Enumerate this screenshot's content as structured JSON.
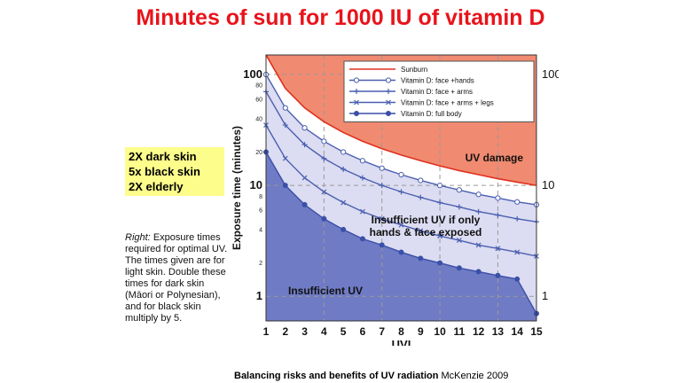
{
  "slide": {
    "title": "Minutes of sun for 1000 IU of vitamin D",
    "notes": [
      "2X dark skin",
      "5x black skin",
      "2X elderly"
    ],
    "caption_italic": "Right:",
    "caption_text": "Exposure times required for optimal UV. The times given are for light skin. Double these times for dark skin (Māori or Polynesian), and for black skin multiply by 5.",
    "footer_bold": "Balancing risks and benefits of UV radiation",
    "footer_source": "McKenzie 2009"
  },
  "chart_data": {
    "type": "line",
    "xlabel": "UVI",
    "ylabel": "Exposure time (minutes)",
    "x": [
      1,
      2,
      3,
      4,
      5,
      6,
      7,
      8,
      9,
      10,
      11,
      12,
      13,
      14,
      15
    ],
    "xlim": [
      1,
      15
    ],
    "ylim": [
      0.6,
      150
    ],
    "y_scale": "log",
    "y_major_ticks": [
      1,
      10,
      100
    ],
    "y_minor_ticks": [
      2,
      4,
      6,
      8,
      20,
      40,
      60,
      80
    ],
    "grid": "dashed",
    "legend_position": "top-right",
    "regions": [
      {
        "label": "UV damage",
        "color": "#f08a70"
      },
      {
        "label": "Insufficient UV if only hands & face exposed",
        "color": "#dcdcf2"
      },
      {
        "label": "Insufficient UV",
        "color": "#6f7bc4"
      }
    ],
    "series": [
      {
        "name": "Sunburn",
        "color": "#e0301e",
        "marker": "none",
        "values": [
          150,
          75,
          50,
          37.5,
          30,
          25,
          21.4,
          18.8,
          16.7,
          15,
          13.6,
          12.5,
          11.5,
          10.7,
          10
        ]
      },
      {
        "name": "Vitamin D: face +hands",
        "color": "#4a5fb0",
        "marker": "circle-open",
        "values": [
          100,
          50,
          33,
          25,
          20,
          16.7,
          14.3,
          12.5,
          11.1,
          10,
          9.1,
          8.3,
          7.7,
          7.1,
          6.7
        ]
      },
      {
        "name": "Vitamin D: face + arms",
        "color": "#4a5fb0",
        "marker": "plus",
        "values": [
          70,
          35,
          23.3,
          17.5,
          14,
          11.7,
          10,
          8.75,
          7.8,
          7,
          6.4,
          5.8,
          5.4,
          5,
          4.7
        ]
      },
      {
        "name": "Vitamin D: face + arms + legs",
        "color": "#4a5fb0",
        "marker": "x",
        "values": [
          35,
          17.5,
          11.7,
          8.75,
          7,
          5.8,
          5,
          4.4,
          3.9,
          3.5,
          3.2,
          2.9,
          2.7,
          2.5,
          2.3
        ]
      },
      {
        "name": "Vitamin D: full body",
        "color": "#3a4fa8",
        "marker": "circle-filled",
        "values": [
          20,
          10,
          6.7,
          5,
          4,
          3.3,
          2.9,
          2.5,
          2.2,
          2,
          1.8,
          1.67,
          1.54,
          1.43,
          0.7
        ]
      }
    ]
  }
}
